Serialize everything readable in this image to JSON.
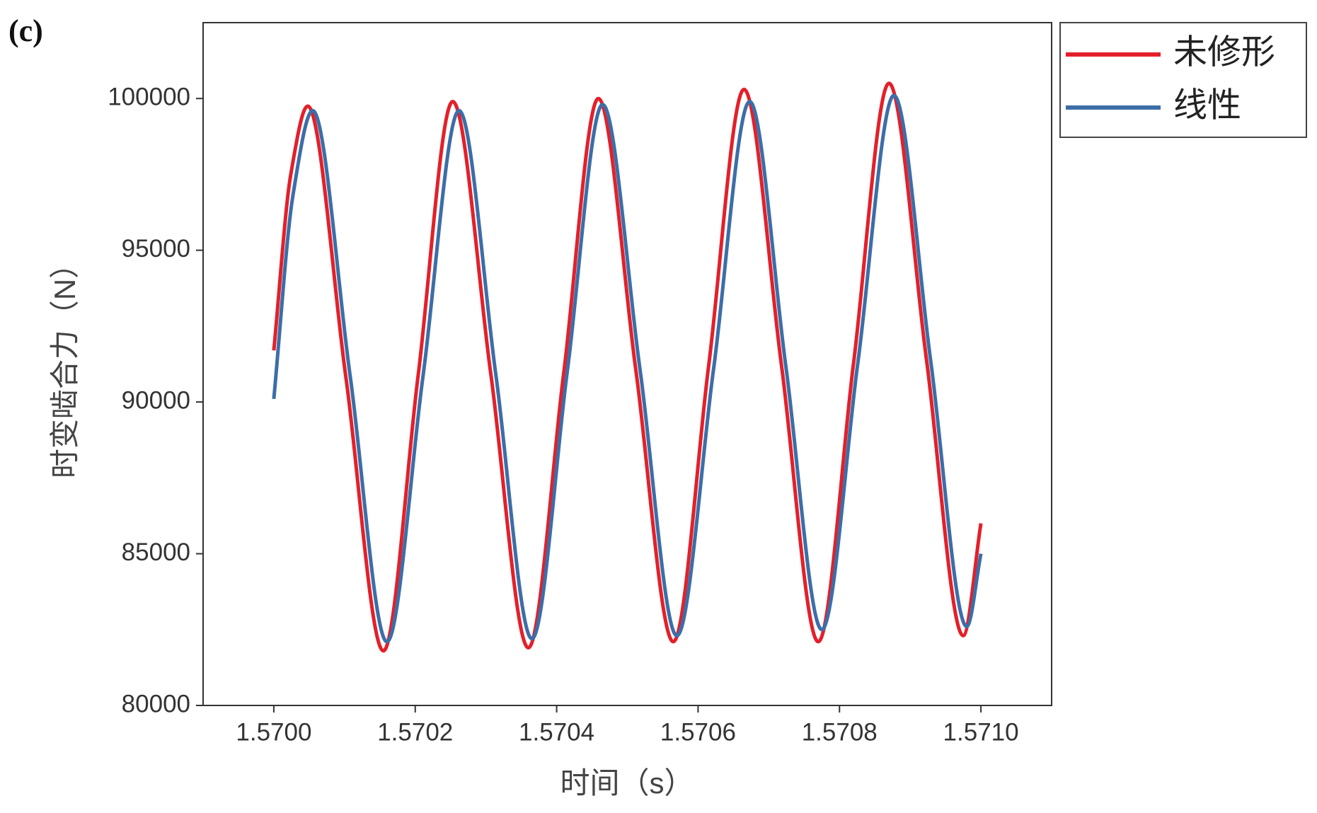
{
  "chart_data": {
    "type": "line",
    "title": "(c)",
    "x_label": "时间（s）",
    "y_label": "时变啮合力（N）",
    "xlim": [
      1.5699,
      1.5711
    ],
    "xticks": [
      {
        "value": 1.57,
        "label": "1.5700"
      },
      {
        "value": 1.5702,
        "label": "1.5702"
      },
      {
        "value": 1.5704,
        "label": "1.5704"
      },
      {
        "value": 1.5706,
        "label": "1.5706"
      },
      {
        "value": 1.5708,
        "label": "1.5708"
      },
      {
        "value": 1.571,
        "label": "1.5710"
      }
    ],
    "ylim": [
      80000,
      102500
    ],
    "yticks": [
      80000,
      85000,
      90000,
      95000,
      100000
    ],
    "series": [
      {
        "name": "未修形",
        "color": "#e3202a",
        "x": [
          1.57,
          1.570024,
          1.570048,
          1.570102,
          1.570155,
          1.570204,
          1.570253,
          1.570307,
          1.57036,
          1.57041,
          1.570459,
          1.570512,
          1.570565,
          1.570615,
          1.570665,
          1.570718,
          1.57077,
          1.57082,
          1.57087,
          1.570923,
          1.570975,
          1.571
        ],
        "values": [
          91700,
          97500,
          99750,
          90800,
          81800,
          90850,
          99900,
          90900,
          81900,
          90950,
          100000,
          91050,
          82100,
          91200,
          100300,
          91200,
          82100,
          91300,
          100500,
          91400,
          82300,
          86000
        ]
      },
      {
        "name": "线性",
        "color": "#3c6ea8",
        "x": [
          1.57,
          1.570027,
          1.570055,
          1.570108,
          1.57016,
          1.570211,
          1.570262,
          1.570314,
          1.570365,
          1.570415,
          1.570465,
          1.570518,
          1.57057,
          1.570622,
          1.570673,
          1.570724,
          1.570775,
          1.570826,
          1.570877,
          1.570929,
          1.57098,
          1.571
        ],
        "values": [
          90100,
          96800,
          99600,
          90850,
          82100,
          90850,
          99600,
          90900,
          82200,
          91000,
          99800,
          91050,
          82300,
          91100,
          99900,
          91200,
          82500,
          91300,
          100100,
          91350,
          82600,
          85000
        ]
      }
    ]
  }
}
